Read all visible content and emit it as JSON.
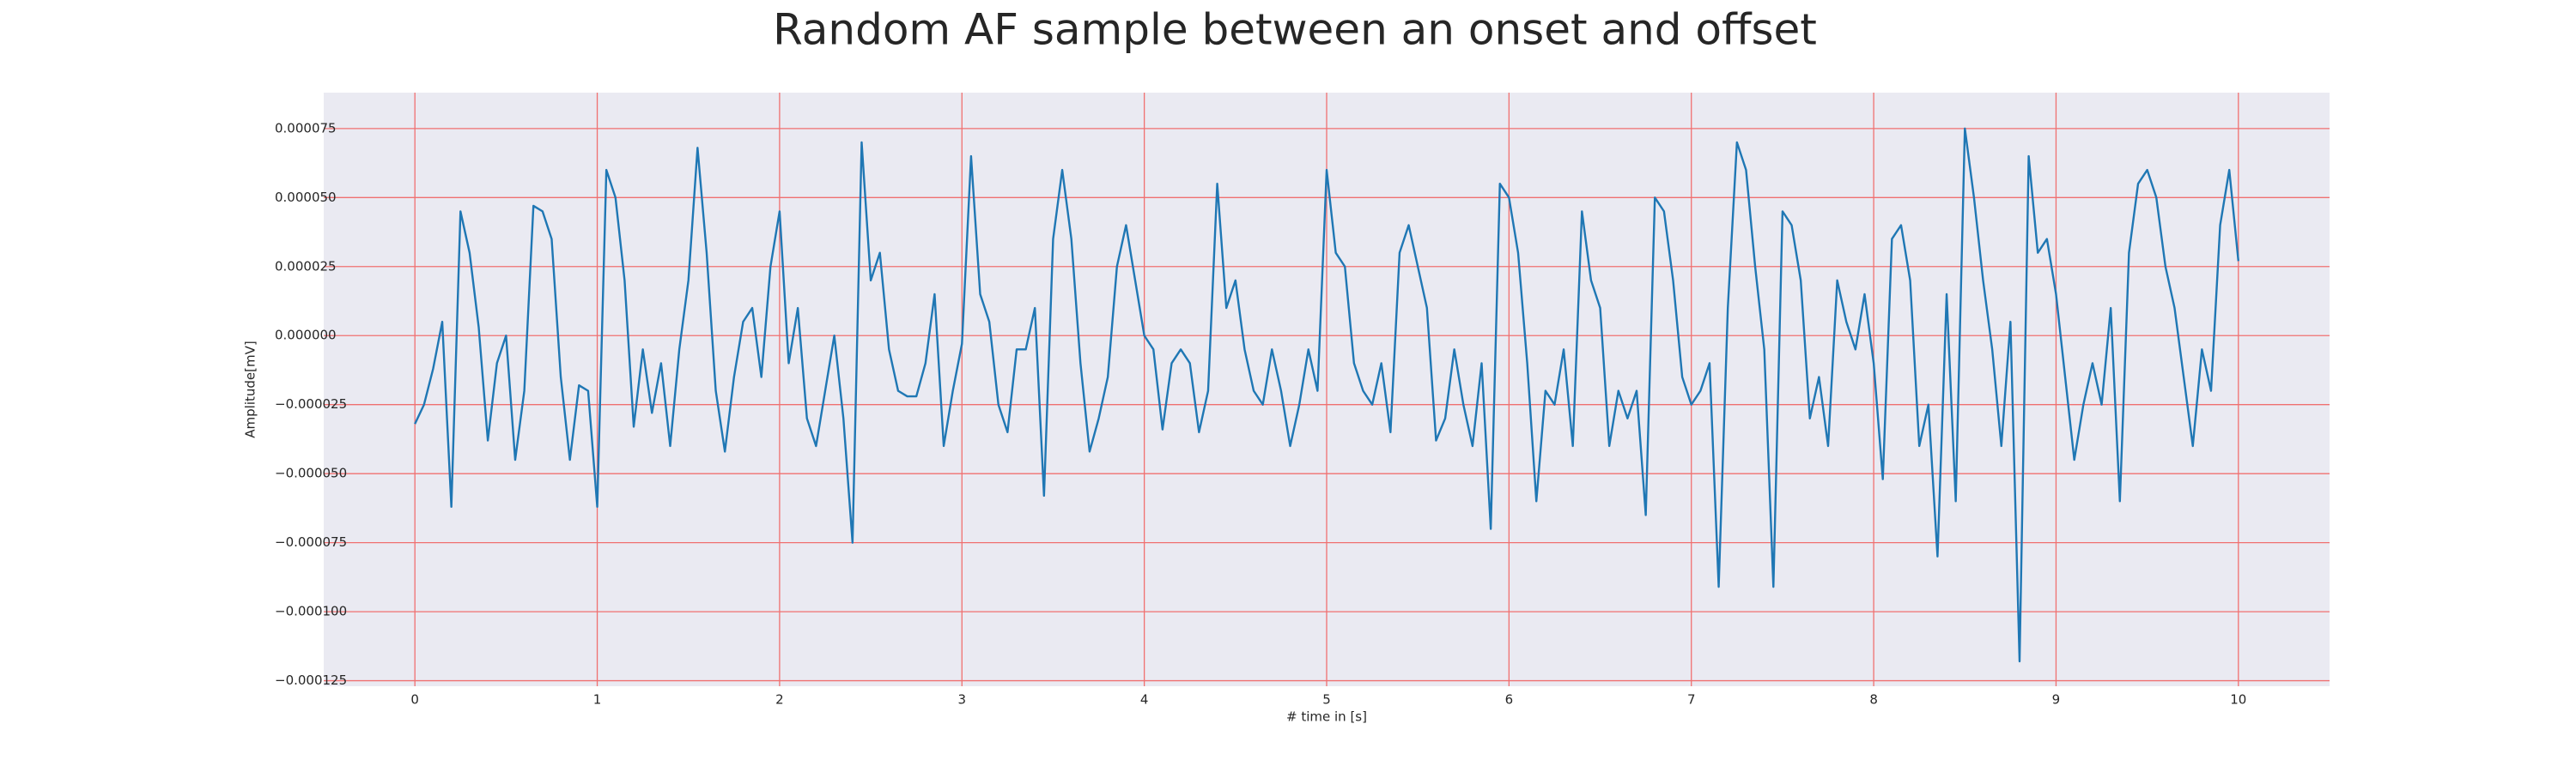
{
  "chart_data": {
    "type": "line",
    "title": "Random AF sample between an onset and offset",
    "xlabel": "# time in [s]",
    "ylabel": "Amplitude[mV]",
    "color": "#1f77b4",
    "grid": true,
    "grid_color": "#f07070",
    "background": "#eaeaf2",
    "xlim": [
      -0.5,
      10.5
    ],
    "ylim": [
      -0.000127,
      8.8e-05
    ],
    "xticks": [
      0,
      1,
      2,
      3,
      4,
      5,
      6,
      7,
      8,
      9,
      10
    ],
    "yticks": [
      {
        "value": -0.000125,
        "label": "−0.000125"
      },
      {
        "value": -0.0001,
        "label": "−0.000100"
      },
      {
        "value": -7.5e-05,
        "label": "−0.000075"
      },
      {
        "value": -5e-05,
        "label": "−0.000050"
      },
      {
        "value": -2.5e-05,
        "label": "−0.000025"
      },
      {
        "value": 0,
        "label": "0.000000"
      },
      {
        "value": 2.5e-05,
        "label": "0.000025"
      },
      {
        "value": 5e-05,
        "label": "0.000050"
      },
      {
        "value": 7.5e-05,
        "label": "0.000075"
      }
    ],
    "x": [
      0,
      0.05,
      0.1,
      0.15,
      0.2,
      0.25,
      0.3,
      0.35,
      0.4,
      0.45,
      0.5,
      0.55,
      0.6,
      0.65,
      0.7,
      0.75,
      0.8,
      0.85,
      0.9,
      0.95,
      1,
      1.05,
      1.1,
      1.15,
      1.2,
      1.25,
      1.3,
      1.35,
      1.4,
      1.45,
      1.5,
      1.55,
      1.6,
      1.65,
      1.7,
      1.75,
      1.8,
      1.85,
      1.9,
      1.95,
      2,
      2.05,
      2.1,
      2.15,
      2.2,
      2.25,
      2.3,
      2.35,
      2.4,
      2.45,
      2.5,
      2.55,
      2.6,
      2.65,
      2.7,
      2.75,
      2.8,
      2.85,
      2.9,
      2.95,
      3,
      3.05,
      3.1,
      3.15,
      3.2,
      3.25,
      3.3,
      3.35,
      3.4,
      3.45,
      3.5,
      3.55,
      3.6,
      3.65,
      3.7,
      3.75,
      3.8,
      3.85,
      3.9,
      3.95,
      4,
      4.05,
      4.1,
      4.15,
      4.2,
      4.25,
      4.3,
      4.35,
      4.4,
      4.45,
      4.5,
      4.55,
      4.6,
      4.65,
      4.7,
      4.75,
      4.8,
      4.85,
      4.9,
      4.95,
      5,
      5.05,
      5.1,
      5.15,
      5.2,
      5.25,
      5.3,
      5.35,
      5.4,
      5.45,
      5.5,
      5.55,
      5.6,
      5.65,
      5.7,
      5.75,
      5.8,
      5.85,
      5.9,
      5.95,
      6,
      6.05,
      6.1,
      6.15,
      6.2,
      6.25,
      6.3,
      6.35,
      6.4,
      6.45,
      6.5,
      6.55,
      6.6,
      6.65,
      6.7,
      6.75,
      6.8,
      6.85,
      6.9,
      6.95,
      7,
      7.05,
      7.1,
      7.15,
      7.2,
      7.25,
      7.3,
      7.35,
      7.4,
      7.45,
      7.5,
      7.55,
      7.6,
      7.65,
      7.7,
      7.75,
      7.8,
      7.85,
      7.9,
      7.95,
      8,
      8.05,
      8.1,
      8.15,
      8.2,
      8.25,
      8.3,
      8.35,
      8.4,
      8.45,
      8.5,
      8.55,
      8.6,
      8.65,
      8.7,
      8.75,
      8.8,
      8.85,
      8.9,
      8.95,
      9,
      9.05,
      9.1,
      9.15,
      9.2,
      9.25,
      9.3,
      9.35,
      9.4,
      9.45,
      9.5,
      9.55,
      9.6,
      9.65,
      9.7,
      9.75,
      9.8,
      9.85,
      9.9,
      9.95,
      10
    ],
    "values": [
      -3.2e-05,
      -2.5e-05,
      -1.2e-05,
      5e-06,
      -6.2e-05,
      4.5e-05,
      3e-05,
      3e-06,
      -3.8e-05,
      -1e-05,
      0,
      -4.5e-05,
      -2e-05,
      4.7e-05,
      4.5e-05,
      3.5e-05,
      -1.5e-05,
      -4.5e-05,
      -1.8e-05,
      -2e-05,
      -6.2e-05,
      6e-05,
      5e-05,
      2e-05,
      -3.3e-05,
      -5e-06,
      -2.8e-05,
      -1e-05,
      -4e-05,
      -5e-06,
      2e-05,
      6.8e-05,
      3e-05,
      -2e-05,
      -4.2e-05,
      -1.5e-05,
      5e-06,
      1e-05,
      -1.5e-05,
      2.5e-05,
      4.5e-05,
      -1e-05,
      1e-05,
      -3e-05,
      -4e-05,
      -2e-05,
      0,
      -3e-05,
      -7.5e-05,
      7e-05,
      2e-05,
      3e-05,
      -5e-06,
      -2e-05,
      -2.2e-05,
      -2.2e-05,
      -1e-05,
      1.5e-05,
      -4e-05,
      -2e-05,
      -3e-06,
      6.5e-05,
      1.5e-05,
      5e-06,
      -2.5e-05,
      -3.5e-05,
      -5e-06,
      -5e-06,
      1e-05,
      -5.8e-05,
      3.5e-05,
      6e-05,
      3.5e-05,
      -1e-05,
      -4.2e-05,
      -3e-05,
      -1.5e-05,
      2.5e-05,
      4e-05,
      2e-05,
      0,
      -5e-06,
      -3.4e-05,
      -1e-05,
      -5e-06,
      -1e-05,
      -3.5e-05,
      -2e-05,
      5.5e-05,
      1e-05,
      2e-05,
      -5e-06,
      -2e-05,
      -2.5e-05,
      -5e-06,
      -2e-05,
      -4e-05,
      -2.5e-05,
      -5e-06,
      -2e-05,
      6e-05,
      3e-05,
      2.5e-05,
      -1e-05,
      -2e-05,
      -2.5e-05,
      -1e-05,
      -3.5e-05,
      3e-05,
      4e-05,
      2.5e-05,
      1e-05,
      -3.8e-05,
      -3e-05,
      -5e-06,
      -2.5e-05,
      -4e-05,
      -1e-05,
      -7e-05,
      5.5e-05,
      5e-05,
      3e-05,
      -1e-05,
      -6e-05,
      -2e-05,
      -2.5e-05,
      -5e-06,
      -4e-05,
      4.5e-05,
      2e-05,
      1e-05,
      -4e-05,
      -2e-05,
      -3e-05,
      -2e-05,
      -6.5e-05,
      5e-05,
      4.5e-05,
      2e-05,
      -1.5e-05,
      -2.5e-05,
      -2e-05,
      -1e-05,
      -9.1e-05,
      1e-05,
      7e-05,
      6e-05,
      2.5e-05,
      -5e-06,
      -9.1e-05,
      4.5e-05,
      4e-05,
      2e-05,
      -3e-05,
      -1.5e-05,
      -4e-05,
      2e-05,
      5e-06,
      -5e-06,
      1.5e-05,
      -1e-05,
      -5.2e-05,
      3.5e-05,
      4e-05,
      2e-05,
      -4e-05,
      -2.5e-05,
      -8e-05,
      1.5e-05,
      -6e-05,
      7.5e-05,
      5e-05,
      2e-05,
      -5e-06,
      -4e-05,
      5e-06,
      -0.000118,
      6.5e-05,
      3e-05,
      3.5e-05,
      1.5e-05,
      -1.5e-05,
      -4.5e-05,
      -2.5e-05,
      -1e-05,
      -2.5e-05,
      1e-05,
      -6e-05,
      3e-05,
      5.5e-05,
      6e-05,
      5e-05,
      2.5e-05,
      1e-05,
      -1.5e-05,
      -4e-05,
      -5e-06,
      -2e-05,
      4e-05,
      6e-05,
      2.7e-05
    ]
  }
}
